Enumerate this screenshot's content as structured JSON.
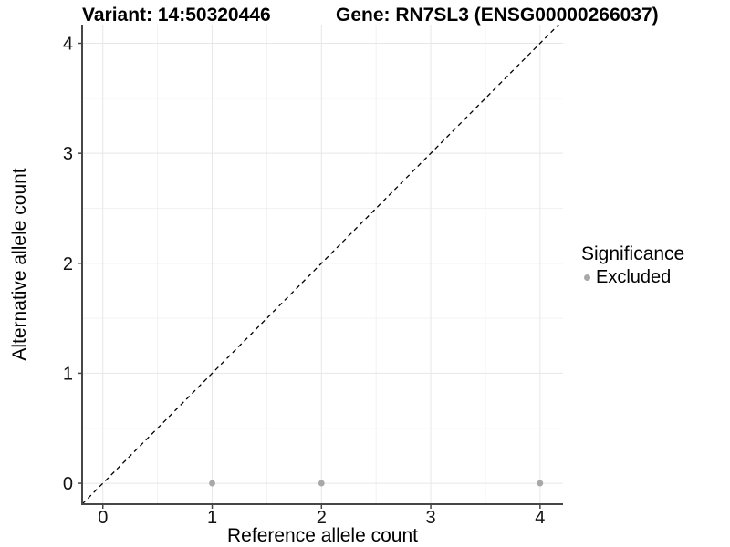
{
  "chart_data": {
    "type": "scatter",
    "title_left": "Variant: 14:50320446",
    "title_right": "Gene: RN7SL3 (ENSG00000266037)",
    "xlabel": "Reference allele count",
    "ylabel": "Alternative allele count",
    "xlim": [
      -0.19,
      4.21
    ],
    "ylim": [
      -0.19,
      4.17
    ],
    "x_ticks": [
      0,
      1,
      2,
      3,
      4
    ],
    "y_ticks": [
      0,
      1,
      2,
      3,
      4
    ],
    "x_minor": [
      0.5,
      1.5,
      2.5,
      3.5
    ],
    "y_minor": [
      0.5,
      1.5,
      2.5,
      3.5
    ],
    "grid": "major+minor",
    "identity_line": {
      "equation": "y = x",
      "style": "dashed",
      "color": "#000000"
    },
    "series": [
      {
        "name": "Excluded",
        "color": "#a8a8a8",
        "point_radius": 3.4,
        "points": [
          {
            "x": 1,
            "y": 0
          },
          {
            "x": 2,
            "y": 0
          },
          {
            "x": 4,
            "y": 0
          }
        ]
      }
    ],
    "legend": {
      "title": "Significance",
      "position": "right",
      "items": [
        {
          "label": "Excluded",
          "color": "#a8a8a8",
          "marker": "dot-icon"
        }
      ]
    },
    "colors": {
      "background": "#ffffff",
      "grid_major": "#e7e7e7",
      "grid_minor": "#f2f2f2",
      "axis": "#474747",
      "tick_text": "#111111",
      "title_text": "#000000"
    }
  }
}
